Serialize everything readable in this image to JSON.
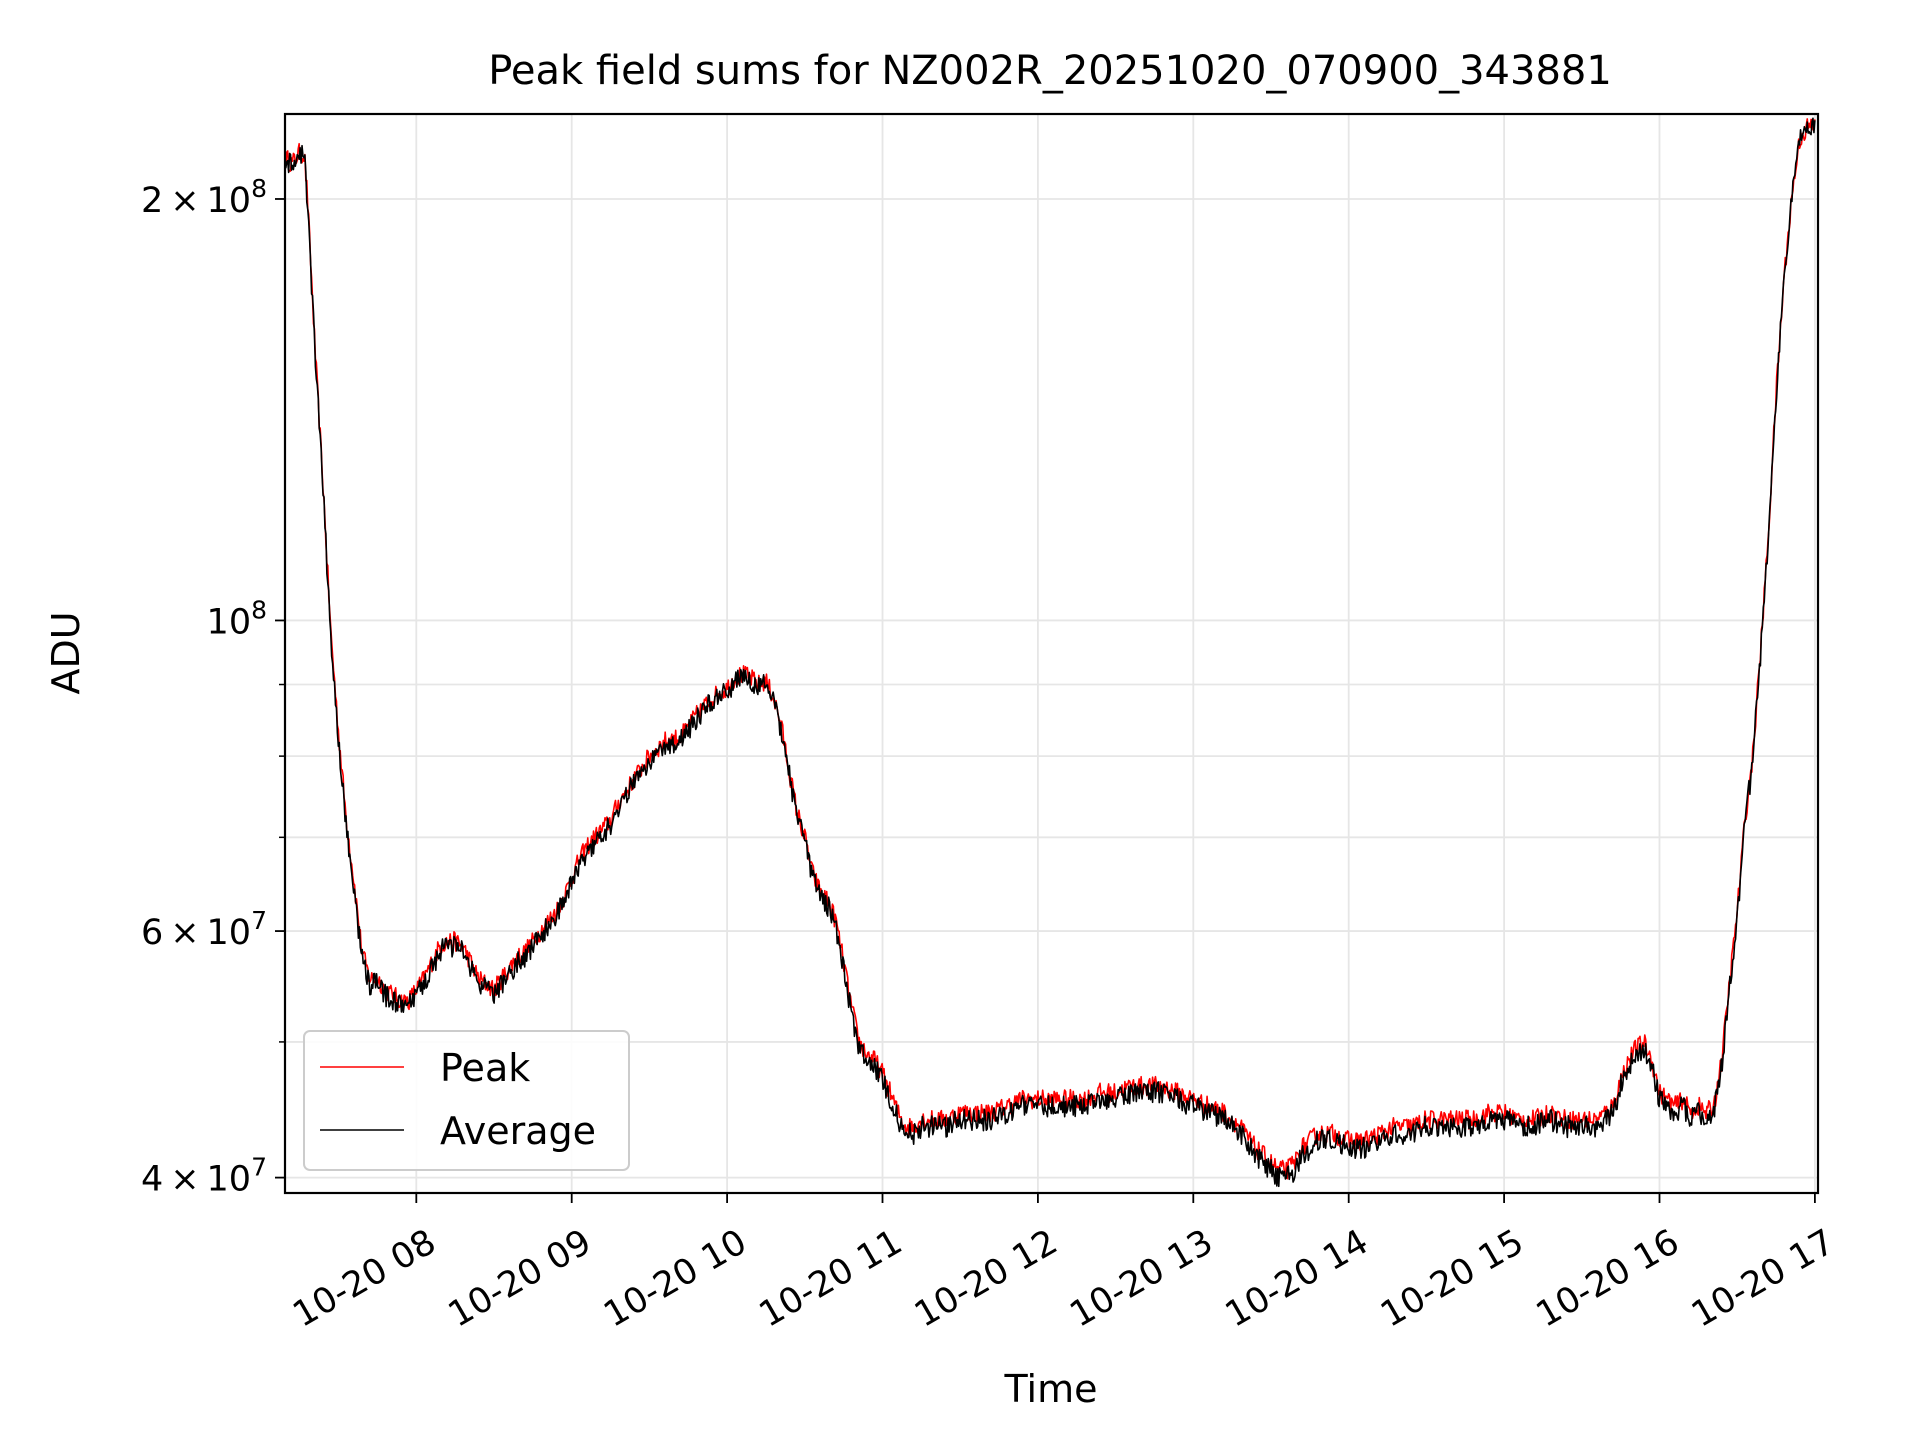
{
  "chart_data": {
    "type": "line",
    "title": "Peak field sums for NZ002R_20251020_070900_343881",
    "xlabel": "Time",
    "ylabel": "ADU",
    "yscale": "log",
    "xlim": [
      7.155,
      17.02
    ],
    "ylim": [
      39000000,
      230000000
    ],
    "grid": true,
    "legend_position": "lower-left",
    "x_ticks": [
      {
        "value": 8,
        "label": "10-20 08"
      },
      {
        "value": 9,
        "label": "10-20 09"
      },
      {
        "value": 10,
        "label": "10-20 10"
      },
      {
        "value": 11,
        "label": "10-20 11"
      },
      {
        "value": 12,
        "label": "10-20 12"
      },
      {
        "value": 13,
        "label": "10-20 13"
      },
      {
        "value": 14,
        "label": "10-20 14"
      },
      {
        "value": 15,
        "label": "10-20 15"
      },
      {
        "value": 16,
        "label": "10-20 16"
      },
      {
        "value": 17,
        "label": "10-20 17"
      }
    ],
    "y_ticks": [
      {
        "value": 40000000,
        "mantissa": "4",
        "times": "×",
        "base": "10",
        "exp": "7"
      },
      {
        "value": 60000000,
        "mantissa": "6",
        "times": "×",
        "base": "10",
        "exp": "7"
      },
      {
        "value": 100000000,
        "mantissa": "",
        "times": "",
        "base": "10",
        "exp": "8"
      },
      {
        "value": 200000000,
        "mantissa": "2",
        "times": "×",
        "base": "10",
        "exp": "8"
      }
    ],
    "y_minor_ticks": [
      50000000,
      70000000,
      80000000,
      90000000
    ],
    "series": [
      {
        "name": "Peak",
        "color": "#ff0000",
        "x": [
          7.16,
          7.2,
          7.25,
          7.28,
          7.3,
          7.35,
          7.4,
          7.45,
          7.5,
          7.55,
          7.6,
          7.65,
          7.7,
          7.75,
          7.8,
          7.85,
          7.9,
          7.95,
          8.0,
          8.05,
          8.1,
          8.15,
          8.2,
          8.25,
          8.3,
          8.35,
          8.4,
          8.45,
          8.5,
          8.55,
          8.6,
          8.65,
          8.7,
          8.75,
          8.8,
          8.85,
          8.9,
          8.95,
          9.0,
          9.05,
          9.1,
          9.15,
          9.2,
          9.25,
          9.3,
          9.4,
          9.5,
          9.6,
          9.7,
          9.8,
          9.9,
          10.0,
          10.05,
          10.1,
          10.15,
          10.2,
          10.25,
          10.3,
          10.35,
          10.4,
          10.45,
          10.5,
          10.55,
          10.6,
          10.65,
          10.7,
          10.75,
          10.8,
          10.85,
          10.9,
          10.95,
          11.0,
          11.05,
          11.1,
          11.15,
          11.2,
          11.25,
          11.3,
          11.35,
          11.4,
          11.5,
          11.6,
          11.7,
          11.8,
          11.9,
          12.0,
          12.1,
          12.2,
          12.3,
          12.4,
          12.5,
          12.6,
          12.7,
          12.8,
          12.9,
          13.0,
          13.1,
          13.2,
          13.3,
          13.4,
          13.5,
          13.55,
          13.6,
          13.65,
          13.7,
          13.8,
          13.9,
          14.0,
          14.1,
          14.2,
          14.3,
          14.4,
          14.5,
          14.6,
          14.7,
          14.8,
          14.9,
          15.0,
          15.1,
          15.2,
          15.3,
          15.4,
          15.5,
          15.6,
          15.7,
          15.75,
          15.8,
          15.85,
          15.9,
          15.95,
          16.0,
          16.05,
          16.1,
          16.15,
          16.2,
          16.25,
          16.3,
          16.35,
          16.4,
          16.45,
          16.5,
          16.55,
          16.6,
          16.65,
          16.7,
          16.75,
          16.8,
          16.85,
          16.9,
          16.95,
          17.0
        ],
        "values": [
          214000000,
          212000000,
          216000000,
          215000000,
          200000000,
          155000000,
          125000000,
          98000000,
          83000000,
          72000000,
          65000000,
          58000000,
          55500000,
          55500000,
          54500000,
          54000000,
          53500000,
          53500000,
          54500000,
          55500000,
          57000000,
          58500000,
          59000000,
          59000000,
          58500000,
          57000000,
          55500000,
          55000000,
          54500000,
          55500000,
          56500000,
          57500000,
          58000000,
          59000000,
          60000000,
          61000000,
          62000000,
          63500000,
          65500000,
          67500000,
          69000000,
          70000000,
          71000000,
          72000000,
          74000000,
          77000000,
          80000000,
          82000000,
          82500000,
          85500000,
          88000000,
          89500000,
          91000000,
          91500000,
          91000000,
          90000000,
          90500000,
          88000000,
          84000000,
          78000000,
          73000000,
          70000000,
          66000000,
          64000000,
          63000000,
          61000000,
          57000000,
          53000000,
          50000000,
          49000000,
          48500000,
          47500000,
          46000000,
          44500000,
          43500000,
          43500000,
          44000000,
          44000000,
          44000000,
          44000000,
          44500000,
          44500000,
          44500000,
          45000000,
          45500000,
          45500000,
          45500000,
          45500000,
          45500000,
          46000000,
          46000000,
          46500000,
          46500000,
          46500000,
          46000000,
          45500000,
          45000000,
          44500000,
          43500000,
          42000000,
          41000000,
          40500000,
          40500000,
          41000000,
          42000000,
          43000000,
          43000000,
          42500000,
          42500000,
          43000000,
          43500000,
          43500000,
          44000000,
          44000000,
          44000000,
          44000000,
          44500000,
          44500000,
          44000000,
          44000000,
          44500000,
          44000000,
          44000000,
          44000000,
          45000000,
          47000000,
          48500000,
          49500000,
          50000000,
          48500000,
          46000000,
          45500000,
          45000000,
          45500000,
          44500000,
          45000000,
          44500000,
          45000000,
          48500000,
          55000000,
          62000000,
          72000000,
          80000000,
          95000000,
          115000000,
          145000000,
          175000000,
          200000000,
          220000000,
          225000000,
          226000000
        ],
        "noise": 0.016
      },
      {
        "name": "Average",
        "color": "#000000",
        "x": [
          7.16,
          7.2,
          7.25,
          7.28,
          7.3,
          7.35,
          7.4,
          7.45,
          7.5,
          7.55,
          7.6,
          7.65,
          7.7,
          7.75,
          7.8,
          7.85,
          7.9,
          7.95,
          8.0,
          8.05,
          8.1,
          8.15,
          8.2,
          8.25,
          8.3,
          8.35,
          8.4,
          8.45,
          8.5,
          8.55,
          8.6,
          8.65,
          8.7,
          8.75,
          8.8,
          8.85,
          8.9,
          8.95,
          9.0,
          9.05,
          9.1,
          9.15,
          9.2,
          9.25,
          9.3,
          9.4,
          9.5,
          9.6,
          9.7,
          9.8,
          9.9,
          10.0,
          10.05,
          10.1,
          10.15,
          10.2,
          10.25,
          10.3,
          10.35,
          10.4,
          10.45,
          10.5,
          10.55,
          10.6,
          10.65,
          10.7,
          10.75,
          10.8,
          10.85,
          10.9,
          10.95,
          11.0,
          11.05,
          11.1,
          11.15,
          11.2,
          11.25,
          11.3,
          11.35,
          11.4,
          11.5,
          11.6,
          11.7,
          11.8,
          11.9,
          12.0,
          12.1,
          12.2,
          12.3,
          12.4,
          12.5,
          12.6,
          12.7,
          12.8,
          12.9,
          13.0,
          13.1,
          13.2,
          13.3,
          13.4,
          13.5,
          13.55,
          13.6,
          13.65,
          13.7,
          13.8,
          13.9,
          14.0,
          14.1,
          14.2,
          14.3,
          14.4,
          14.5,
          14.6,
          14.7,
          14.8,
          14.9,
          15.0,
          15.1,
          15.2,
          15.3,
          15.4,
          15.5,
          15.6,
          15.7,
          15.75,
          15.8,
          15.85,
          15.9,
          15.95,
          16.0,
          16.05,
          16.1,
          16.15,
          16.2,
          16.25,
          16.3,
          16.35,
          16.4,
          16.45,
          16.5,
          16.55,
          16.6,
          16.65,
          16.7,
          16.75,
          16.8,
          16.85,
          16.9,
          16.95,
          17.0
        ],
        "values": [
          213000000,
          211000000,
          215000000,
          214000000,
          199000000,
          154000000,
          124000000,
          97000000,
          82000000,
          71000000,
          64000000,
          57500000,
          55000000,
          55000000,
          54000000,
          53500000,
          53000000,
          53000000,
          54000000,
          55000000,
          56500000,
          58000000,
          58500000,
          58500000,
          58000000,
          56500000,
          55000000,
          54500000,
          54000000,
          55000000,
          56000000,
          57000000,
          57500000,
          58500000,
          59500000,
          60500000,
          61500000,
          63000000,
          65000000,
          67000000,
          68500000,
          69500000,
          70500000,
          71500000,
          73500000,
          76500000,
          79500000,
          81500000,
          82000000,
          85000000,
          87500000,
          89000000,
          90500000,
          91000000,
          90500000,
          89500000,
          90000000,
          87500000,
          83500000,
          77500000,
          72500000,
          69500000,
          65500000,
          63500000,
          62500000,
          60500000,
          56500000,
          52500000,
          49500000,
          48500000,
          48000000,
          47000000,
          45500000,
          44000000,
          43000000,
          43000000,
          43500000,
          43500000,
          43500000,
          43500000,
          44000000,
          44000000,
          44000000,
          44500000,
          45000000,
          45000000,
          45000000,
          45000000,
          45000000,
          45500000,
          45500000,
          46000000,
          46000000,
          46000000,
          45500000,
          45000000,
          44500000,
          44000000,
          43000000,
          41500000,
          40500000,
          40000000,
          40000000,
          40500000,
          41500000,
          42500000,
          42500000,
          42000000,
          42000000,
          42500000,
          43000000,
          43000000,
          43500000,
          43500000,
          43500000,
          43500000,
          44000000,
          44000000,
          43500000,
          43500000,
          44000000,
          43500000,
          43500000,
          43500000,
          44500000,
          46500000,
          48000000,
          49000000,
          49500000,
          48000000,
          45500000,
          45000000,
          44500000,
          45000000,
          44000000,
          44500000,
          44000000,
          44500000,
          48000000,
          54500000,
          61500000,
          71500000,
          79500000,
          94500000,
          114500000,
          144500000,
          174500000,
          199500000,
          219500000,
          224500000,
          225500000
        ],
        "noise": 0.018
      }
    ]
  }
}
